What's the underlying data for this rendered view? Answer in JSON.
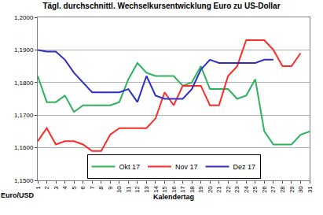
{
  "chart_data": {
    "type": "line",
    "title": "Tägl. durchschnittl. Wechselkursentwicklung Euro zu US-Dollar",
    "x_label": "Kalendertag",
    "y_label": "Euro/USD",
    "categories": [
      "1",
      "2",
      "3",
      "4",
      "5",
      "6",
      "7",
      "8",
      "9",
      "10",
      "11",
      "12",
      "13",
      "14",
      "15",
      "16",
      "17",
      "18",
      "19",
      "20",
      "21",
      "22",
      "23",
      "24",
      "25",
      "26",
      "27",
      "28",
      "29",
      "30",
      "31"
    ],
    "series": [
      {
        "name": "Okt 17",
        "color": "#2db35a",
        "values": [
          1.182,
          1.174,
          1.174,
          1.176,
          1.171,
          1.173,
          1.173,
          1.173,
          1.173,
          1.174,
          1.181,
          1.186,
          1.183,
          1.182,
          1.182,
          1.182,
          1.179,
          1.18,
          1.185,
          1.178,
          1.178,
          1.178,
          1.175,
          1.176,
          1.181,
          1.165,
          1.161,
          1.161,
          1.161,
          1.164,
          1.165
        ]
      },
      {
        "name": "Nov 17",
        "color": "#ff2b2b",
        "values": [
          1.162,
          1.166,
          1.161,
          1.162,
          1.162,
          1.161,
          1.159,
          1.159,
          1.164,
          1.166,
          1.166,
          1.166,
          1.166,
          1.169,
          1.177,
          1.173,
          1.179,
          1.179,
          1.179,
          1.173,
          1.173,
          1.182,
          1.185,
          1.193,
          1.193,
          1.193,
          1.19,
          1.185,
          1.185,
          1.189,
          null
        ]
      },
      {
        "name": "Dez 17",
        "color": "#2e2ec8",
        "values": [
          1.19,
          1.1895,
          1.1895,
          1.187,
          1.183,
          1.18,
          1.177,
          1.177,
          1.177,
          1.177,
          1.178,
          1.174,
          1.182,
          1.176,
          1.175,
          1.175,
          1.175,
          1.178,
          1.184,
          1.187,
          1.186,
          1.186,
          1.186,
          1.186,
          1.186,
          1.187,
          1.187,
          null,
          null,
          null,
          null
        ]
      }
    ],
    "ylim": [
      1.15,
      1.2
    ],
    "yticks": [
      {
        "value": 1.15,
        "label": "1,1500"
      },
      {
        "value": 1.16,
        "label": "1,1600"
      },
      {
        "value": 1.17,
        "label": "1,1700"
      },
      {
        "value": 1.18,
        "label": "1,1800"
      },
      {
        "value": 1.19,
        "label": "1,1900"
      },
      {
        "value": 1.2,
        "label": "1,2000"
      }
    ],
    "grid": true,
    "legend": "bottom"
  }
}
